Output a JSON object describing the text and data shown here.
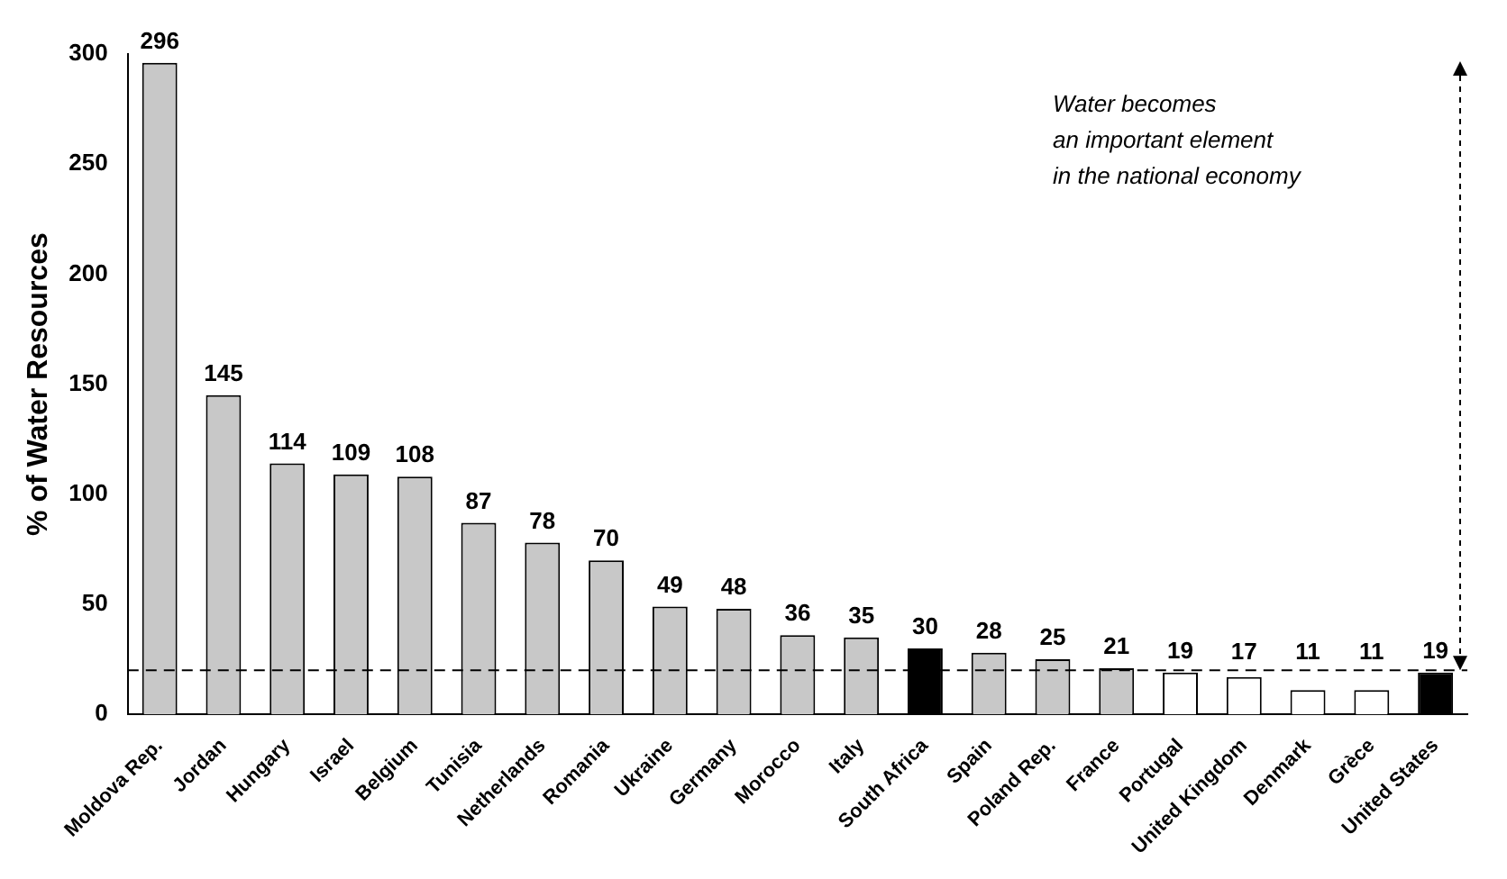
{
  "chart_data": {
    "type": "bar",
    "ylabel": "% of Water Resources",
    "categories": [
      "Moldova Rep.",
      "Jordan",
      "Hungary",
      "Israel",
      "Belgium",
      "Tunisia",
      "Netherlands",
      "Romania",
      "Ukraine",
      "Germany",
      "Morocco",
      "Italy",
      "South Africa",
      "Spain",
      "Poland Rep.",
      "France",
      "Portugal",
      "United Kingdom",
      "Denmark",
      "Grèce",
      "United States"
    ],
    "values": [
      296,
      145,
      114,
      109,
      108,
      87,
      78,
      70,
      49,
      48,
      36,
      35,
      30,
      28,
      25,
      21,
      19,
      17,
      11,
      11,
      19
    ],
    "colors": [
      "#c8c8c8",
      "#c8c8c8",
      "#c8c8c8",
      "#c8c8c8",
      "#c8c8c8",
      "#c8c8c8",
      "#c8c8c8",
      "#c8c8c8",
      "#c8c8c8",
      "#c8c8c8",
      "#c8c8c8",
      "#c8c8c8",
      "#000000",
      "#c8c8c8",
      "#c8c8c8",
      "#c8c8c8",
      "#ffffff",
      "#ffffff",
      "#ffffff",
      "#ffffff",
      "#000000"
    ],
    "ylim": [
      0,
      300
    ],
    "yticks": [
      0,
      50,
      100,
      150,
      200,
      250,
      300
    ],
    "ref_lines": [
      {
        "axis": "y",
        "value": 20,
        "line_style": "dashed"
      }
    ],
    "annotations": [
      "Water becomes\nan important element\nin the national economy"
    ],
    "data_labels": true,
    "grid": false,
    "legend": false
  }
}
